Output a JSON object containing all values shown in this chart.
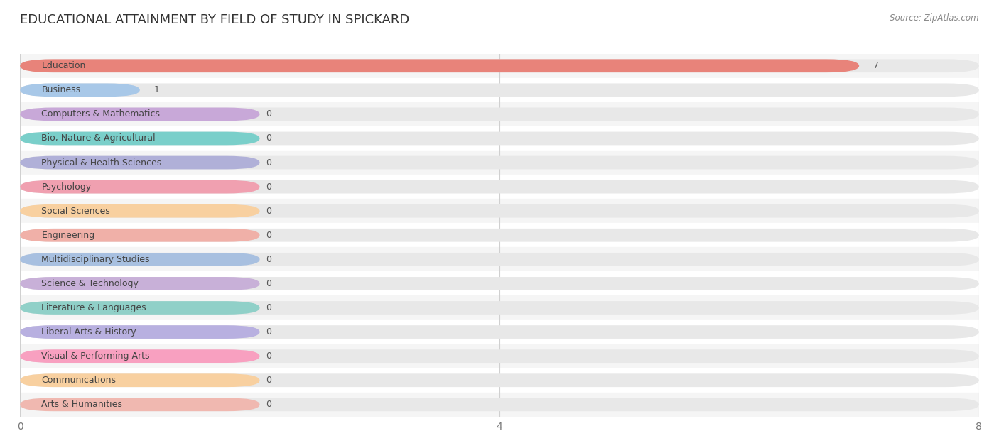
{
  "title": "EDUCATIONAL ATTAINMENT BY FIELD OF STUDY IN SPICKARD",
  "source": "Source: ZipAtlas.com",
  "categories": [
    "Education",
    "Business",
    "Computers & Mathematics",
    "Bio, Nature & Agricultural",
    "Physical & Health Sciences",
    "Psychology",
    "Social Sciences",
    "Engineering",
    "Multidisciplinary Studies",
    "Science & Technology",
    "Literature & Languages",
    "Liberal Arts & History",
    "Visual & Performing Arts",
    "Communications",
    "Arts & Humanities"
  ],
  "values": [
    7,
    1,
    0,
    0,
    0,
    0,
    0,
    0,
    0,
    0,
    0,
    0,
    0,
    0,
    0
  ],
  "bar_colors": [
    "#e8837a",
    "#a8c8e8",
    "#c8a8d8",
    "#7acfca",
    "#b0b0d8",
    "#f0a0b0",
    "#f8d0a0",
    "#f0b0a8",
    "#a8c0e0",
    "#c8b0d8",
    "#90d0c8",
    "#b8b0e0",
    "#f8a0c0",
    "#f8d0a0",
    "#f0b8b0"
  ],
  "xlim": [
    0,
    8
  ],
  "xticks": [
    0,
    4,
    8
  ],
  "background_color": "#ffffff",
  "bar_bg_color": "#e8e8e8",
  "title_fontsize": 13,
  "label_fontsize": 9,
  "value_fontsize": 9,
  "bar_height": 0.55,
  "row_colors": [
    "#f5f5f5",
    "#ffffff"
  ]
}
